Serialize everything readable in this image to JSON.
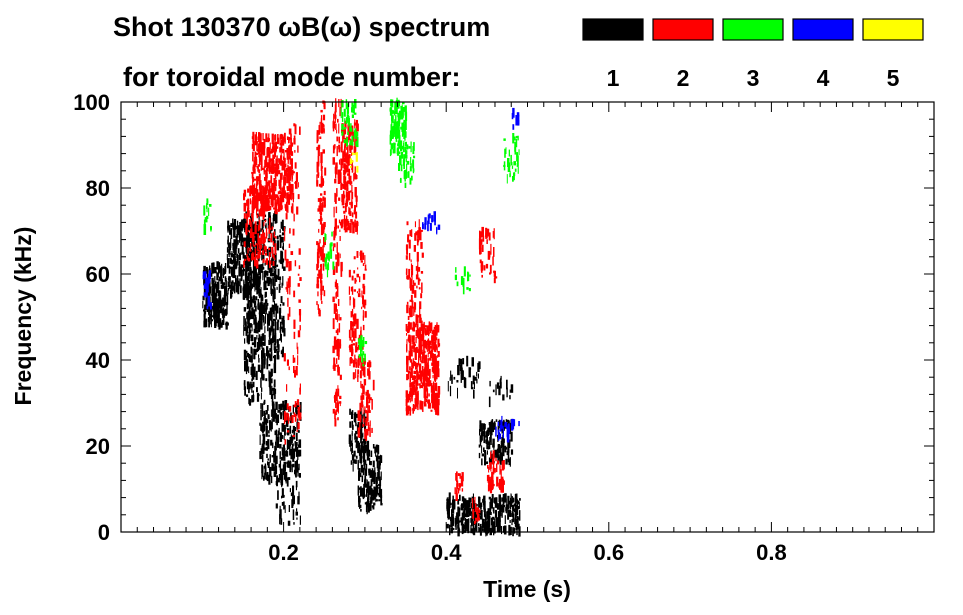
{
  "title": {
    "line1": "Shot 130370 ωB(ω) spectrum",
    "line2": "for toroidal mode number:"
  },
  "legend": [
    {
      "label": "1",
      "color": "#000000"
    },
    {
      "label": "2",
      "color": "#ff0000"
    },
    {
      "label": "3",
      "color": "#00ff00"
    },
    {
      "label": "4",
      "color": "#0000ff"
    },
    {
      "label": "5",
      "color": "#ffff00"
    }
  ],
  "chart_data": {
    "type": "heatmap",
    "title": "Shot 130370 ωB(ω) spectrum",
    "xlabel": "Time (s)",
    "ylabel": "Frequency (kHz)",
    "xlim": [
      0.0,
      1.0
    ],
    "ylim": [
      0,
      100
    ],
    "x_ticks": [
      0.2,
      0.4,
      0.6,
      0.8
    ],
    "x_tick_labels": [
      "0.2",
      "0.4",
      "0.6",
      "0.8"
    ],
    "y_ticks": [
      0,
      20,
      40,
      60,
      80,
      100
    ],
    "y_tick_labels": [
      "0",
      "20",
      "40",
      "60",
      "80",
      "100"
    ],
    "grid": false,
    "legend_placement": "top",
    "series": [
      {
        "name": "1",
        "color": "#000000",
        "regions": [
          {
            "t": [
              0.1,
              0.13
            ],
            "f": [
              48,
              62
            ],
            "density": 0.8
          },
          {
            "t": [
              0.13,
              0.17
            ],
            "f": [
              55,
              72
            ],
            "density": 0.7
          },
          {
            "t": [
              0.15,
              0.2
            ],
            "f": [
              40,
              74
            ],
            "density": 0.35
          },
          {
            "t": [
              0.15,
              0.19
            ],
            "f": [
              30,
              60
            ],
            "density": 0.25
          },
          {
            "t": [
              0.17,
              0.22
            ],
            "f": [
              12,
              30
            ],
            "density": 0.45
          },
          {
            "t": [
              0.19,
              0.22
            ],
            "f": [
              2,
              14
            ],
            "density": 0.2
          },
          {
            "t": [
              0.28,
              0.3
            ],
            "f": [
              15,
              28
            ],
            "density": 0.5
          },
          {
            "t": [
              0.29,
              0.32
            ],
            "f": [
              5,
              20
            ],
            "density": 0.55
          },
          {
            "t": [
              0.4,
              0.44
            ],
            "f": [
              0,
              8
            ],
            "density": 0.8
          },
          {
            "t": [
              0.44,
              0.49
            ],
            "f": [
              0,
              8
            ],
            "density": 0.75
          },
          {
            "t": [
              0.44,
              0.48
            ],
            "f": [
              16,
              26
            ],
            "density": 0.6
          },
          {
            "t": [
              0.4,
              0.44
            ],
            "f": [
              32,
              40
            ],
            "density": 0.2
          },
          {
            "t": [
              0.45,
              0.48
            ],
            "f": [
              30,
              36
            ],
            "density": 0.15
          }
        ]
      },
      {
        "name": "2",
        "color": "#ff0000",
        "regions": [
          {
            "t": [
              0.16,
              0.21
            ],
            "f": [
              75,
              92
            ],
            "density": 0.7
          },
          {
            "t": [
              0.15,
              0.19
            ],
            "f": [
              62,
              80
            ],
            "density": 0.35
          },
          {
            "t": [
              0.2,
              0.22
            ],
            "f": [
              20,
              95
            ],
            "density": 0.12
          },
          {
            "t": [
              0.24,
              0.25
            ],
            "f": [
              50,
              100
            ],
            "density": 0.4
          },
          {
            "t": [
              0.26,
              0.27
            ],
            "f": [
              25,
              100
            ],
            "density": 0.3
          },
          {
            "t": [
              0.27,
              0.29
            ],
            "f": [
              70,
              95
            ],
            "density": 0.55
          },
          {
            "t": [
              0.28,
              0.3
            ],
            "f": [
              35,
              65
            ],
            "density": 0.3
          },
          {
            "t": [
              0.29,
              0.31
            ],
            "f": [
              22,
              40
            ],
            "density": 0.3
          },
          {
            "t": [
              0.35,
              0.39
            ],
            "f": [
              28,
              48
            ],
            "density": 0.75
          },
          {
            "t": [
              0.35,
              0.37
            ],
            "f": [
              48,
              72
            ],
            "density": 0.3
          },
          {
            "t": [
              0.41,
              0.42
            ],
            "f": [
              8,
              14
            ],
            "density": 0.5
          },
          {
            "t": [
              0.44,
              0.46
            ],
            "f": [
              58,
              70
            ],
            "density": 0.3
          },
          {
            "t": [
              0.45,
              0.47
            ],
            "f": [
              10,
              18
            ],
            "density": 0.55
          },
          {
            "t": [
              0.43,
              0.44
            ],
            "f": [
              2,
              8
            ],
            "density": 0.4
          }
        ]
      },
      {
        "name": "3",
        "color": "#00ff00",
        "regions": [
          {
            "t": [
              0.33,
              0.35
            ],
            "f": [
              88,
              100
            ],
            "density": 0.8
          },
          {
            "t": [
              0.34,
              0.36
            ],
            "f": [
              80,
              90
            ],
            "density": 0.4
          },
          {
            "t": [
              0.27,
              0.29
            ],
            "f": [
              90,
              100
            ],
            "density": 0.35
          },
          {
            "t": [
              0.25,
              0.26
            ],
            "f": [
              60,
              70
            ],
            "density": 0.3
          },
          {
            "t": [
              0.29,
              0.3
            ],
            "f": [
              38,
              45
            ],
            "density": 0.4
          },
          {
            "t": [
              0.47,
              0.49
            ],
            "f": [
              82,
              92
            ],
            "density": 0.3
          },
          {
            "t": [
              0.1,
              0.11
            ],
            "f": [
              70,
              78
            ],
            "density": 0.3
          },
          {
            "t": [
              0.41,
              0.43
            ],
            "f": [
              55,
              62
            ],
            "density": 0.15
          }
        ]
      },
      {
        "name": "4",
        "color": "#0000ff",
        "regions": [
          {
            "t": [
              0.1,
              0.11
            ],
            "f": [
              52,
              60
            ],
            "density": 0.45
          },
          {
            "t": [
              0.46,
              0.49
            ],
            "f": [
              22,
              26
            ],
            "density": 0.35
          },
          {
            "t": [
              0.48,
              0.49
            ],
            "f": [
              94,
              98
            ],
            "density": 0.3
          },
          {
            "t": [
              0.37,
              0.39
            ],
            "f": [
              70,
              74
            ],
            "density": 0.3
          }
        ]
      },
      {
        "name": "5",
        "color": "#ffff00",
        "regions": [
          {
            "t": [
              0.28,
              0.29
            ],
            "f": [
              84,
              88
            ],
            "density": 0.3
          }
        ]
      }
    ]
  }
}
